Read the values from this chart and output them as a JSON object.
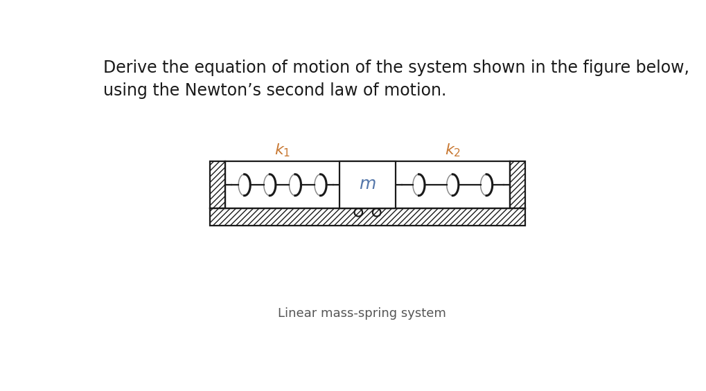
{
  "title_line1": "Derive the equation of motion of the system shown in the figure below,",
  "title_line2": "using the Newton’s second law of motion.",
  "caption": "Linear mass-spring system",
  "bg_color": "#ffffff",
  "text_color": "#1a1a1a",
  "caption_color": "#555555",
  "k1_label": "$k_1$",
  "k2_label": "$k_2$",
  "m_label": "$m$",
  "title_fontsize": 17,
  "caption_fontsize": 13,
  "label_fontsize": 16,
  "spring_color": "#1a1a1a",
  "line_color": "#1a1a1a",
  "k_color": "#c87832",
  "m_color": "#5577aa"
}
